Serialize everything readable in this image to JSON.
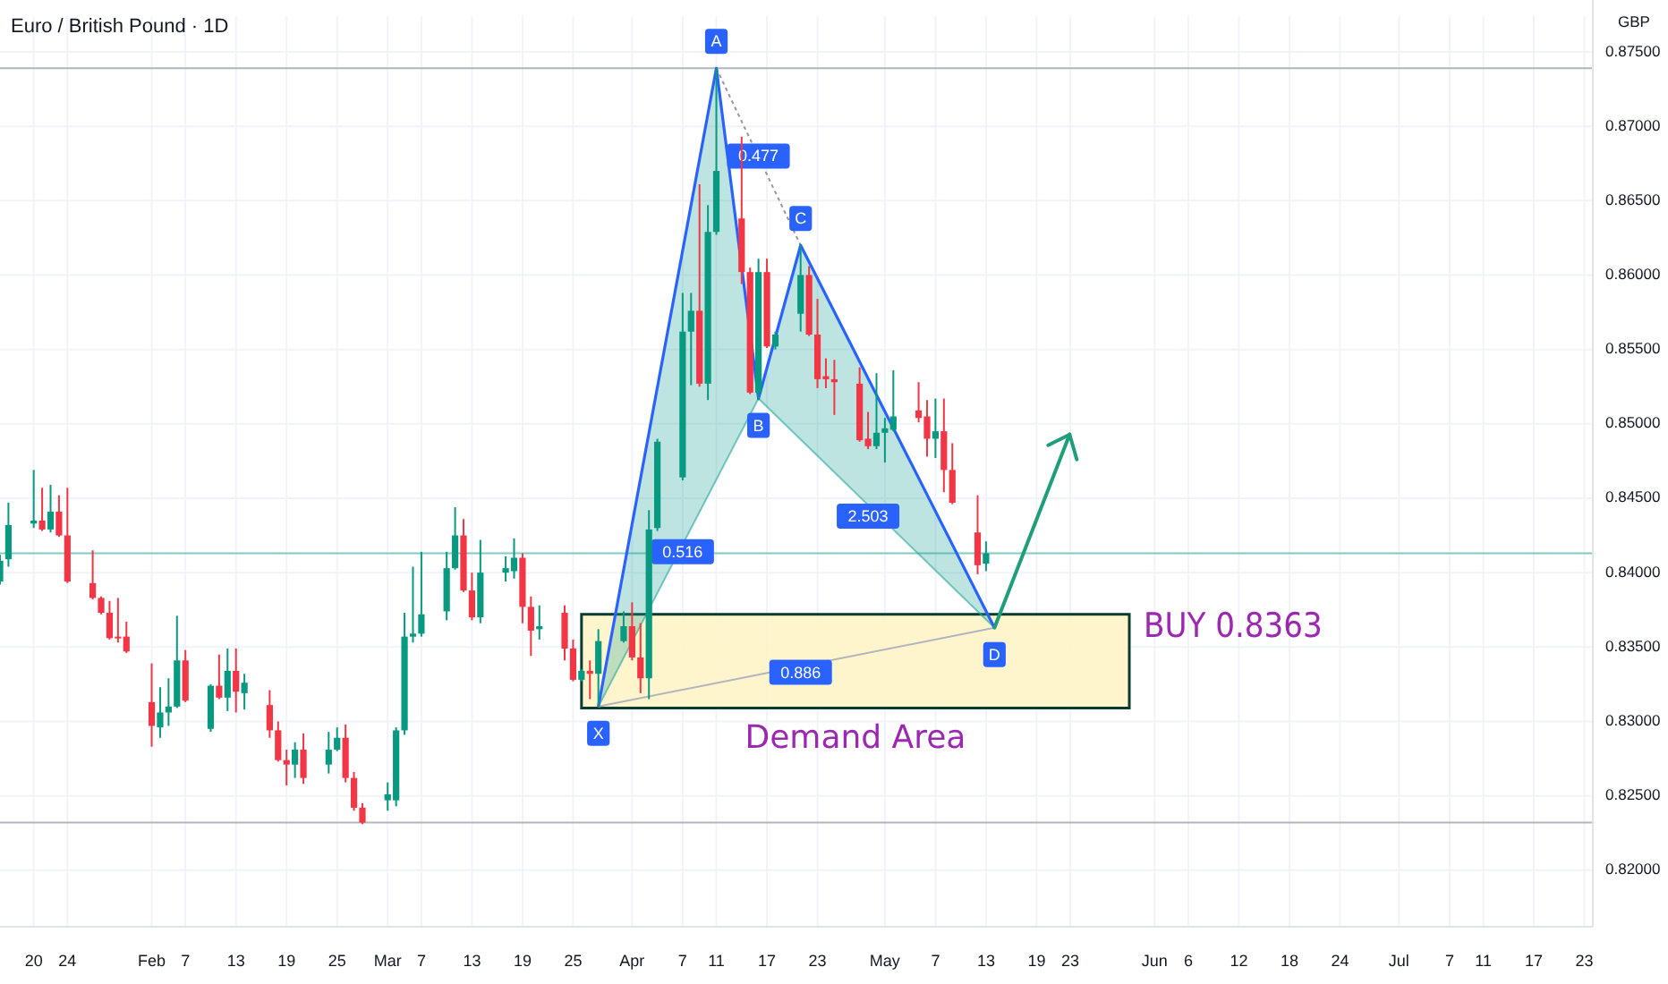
{
  "chart_data": {
    "type": "candlestick",
    "title": "Euro / British Pound · 1D",
    "ylabel": "GBP",
    "x": [
      "--01-16",
      "--01-17",
      "--01-20",
      "--01-21",
      "--01-22",
      "--01-23",
      "--01-24",
      "--01-27",
      "--01-28",
      "--01-29",
      "--01-30",
      "--01-31",
      "--02-03",
      "--02-04",
      "--02-05",
      "--02-06",
      "--02-07",
      "--02-10",
      "--02-11",
      "--02-12",
      "--02-13",
      "--02-14",
      "--02-17",
      "--02-18",
      "--02-19",
      "--02-20",
      "--02-21",
      "--02-24",
      "--02-25",
      "--02-26",
      "--02-27",
      "--02-28",
      "--03-03",
      "--03-04",
      "--03-05",
      "--03-06",
      "--03-07",
      "--03-10",
      "--03-11",
      "--03-12",
      "--03-13",
      "--03-14",
      "--03-17",
      "--03-18",
      "--03-19",
      "--03-20",
      "--03-21",
      "--03-24",
      "--03-25",
      "--03-26",
      "--03-27",
      "--03-28",
      "--03-31",
      "--04-01",
      "--04-02",
      "--04-03",
      "--04-04",
      "--04-07",
      "--04-08",
      "--04-09",
      "--04-10",
      "--04-11",
      "--04-14",
      "--04-15",
      "--04-16",
      "--04-17",
      "--04-18",
      "--04-21",
      "--04-22",
      "--04-23",
      "--04-24",
      "--04-25",
      "--04-28",
      "--04-29",
      "--04-30",
      "--05-01",
      "--05-02",
      "--05-05",
      "--05-06",
      "--05-07",
      "--05-08",
      "--05-09",
      "--05-12",
      "--05-13"
    ],
    "ohlc": [
      [
        0.8394,
        0.8412,
        0.8392,
        0.8408
      ],
      [
        0.8409,
        0.8447,
        0.8404,
        0.8432
      ],
      [
        0.8433,
        0.8469,
        0.843,
        0.8435
      ],
      [
        0.8435,
        0.8457,
        0.8428,
        0.8429
      ],
      [
        0.8429,
        0.8459,
        0.8427,
        0.8441
      ],
      [
        0.8441,
        0.8452,
        0.8424,
        0.8425
      ],
      [
        0.8425,
        0.8457,
        0.8393,
        0.8394
      ],
      [
        0.8393,
        0.8415,
        0.8382,
        0.8383
      ],
      [
        0.8383,
        0.8384,
        0.8372,
        0.8373
      ],
      [
        0.8373,
        0.8381,
        0.8355,
        0.8356
      ],
      [
        0.8357,
        0.8383,
        0.8353,
        0.8356
      ],
      [
        0.8357,
        0.8367,
        0.8346,
        0.8347
      ],
      [
        0.8313,
        0.8339,
        0.8283,
        0.8297
      ],
      [
        0.8296,
        0.8323,
        0.8289,
        0.8306
      ],
      [
        0.8306,
        0.8329,
        0.8297,
        0.831
      ],
      [
        0.831,
        0.8371,
        0.8309,
        0.8341
      ],
      [
        0.8341,
        0.8348,
        0.8313,
        0.8314
      ],
      [
        0.8295,
        0.8325,
        0.8293,
        0.8324
      ],
      [
        0.8324,
        0.8345,
        0.8315,
        0.8316
      ],
      [
        0.8316,
        0.8349,
        0.8307,
        0.8334
      ],
      [
        0.8334,
        0.8349,
        0.8306,
        0.832
      ],
      [
        0.8319,
        0.8332,
        0.8308,
        0.8326
      ],
      [
        0.8311,
        0.8321,
        0.8289,
        0.8294
      ],
      [
        0.8294,
        0.83,
        0.8273,
        0.8274
      ],
      [
        0.8274,
        0.8281,
        0.8257,
        0.8271
      ],
      [
        0.8271,
        0.8286,
        0.8262,
        0.8281
      ],
      [
        0.8281,
        0.8292,
        0.8258,
        0.8262
      ],
      [
        0.8271,
        0.8293,
        0.8265,
        0.8281
      ],
      [
        0.8281,
        0.8296,
        0.828,
        0.8289
      ],
      [
        0.8289,
        0.8298,
        0.8259,
        0.8262
      ],
      [
        0.8262,
        0.8266,
        0.824,
        0.8242
      ],
      [
        0.8242,
        0.8245,
        0.8231,
        0.8232
      ],
      [
        0.8247,
        0.8259,
        0.824,
        0.8251
      ],
      [
        0.8247,
        0.8296,
        0.8243,
        0.8294
      ],
      [
        0.8294,
        0.8373,
        0.8291,
        0.8357
      ],
      [
        0.8357,
        0.8404,
        0.8353,
        0.8359
      ],
      [
        0.8359,
        0.8414,
        0.8357,
        0.8372
      ],
      [
        0.8374,
        0.8414,
        0.8368,
        0.8403
      ],
      [
        0.8403,
        0.8444,
        0.8402,
        0.8425
      ],
      [
        0.8425,
        0.8436,
        0.8387,
        0.8388
      ],
      [
        0.8388,
        0.84,
        0.8368,
        0.837
      ],
      [
        0.837,
        0.8422,
        0.8366,
        0.84
      ],
      [
        0.84,
        0.8411,
        0.8394,
        0.8403
      ],
      [
        0.8401,
        0.8423,
        0.8396,
        0.841
      ],
      [
        0.841,
        0.8413,
        0.8366,
        0.8377
      ],
      [
        0.8377,
        0.8384,
        0.8344,
        0.8361
      ],
      [
        0.8362,
        0.8378,
        0.8355,
        0.8364
      ],
      [
        0.8373,
        0.8378,
        0.8341,
        0.8349
      ],
      [
        0.8349,
        0.8355,
        0.8327,
        0.8328
      ],
      [
        0.8328,
        0.8335,
        0.8327,
        0.8334
      ],
      [
        0.8334,
        0.8341,
        0.8315,
        0.8332
      ],
      [
        0.8332,
        0.8362,
        0.831,
        0.8354
      ],
      [
        0.8354,
        0.8374,
        0.8353,
        0.8364
      ],
      [
        0.8364,
        0.838,
        0.8341,
        0.8343
      ],
      [
        0.8343,
        0.8366,
        0.8319,
        0.8329
      ],
      [
        0.8329,
        0.8442,
        0.8315,
        0.8429
      ],
      [
        0.843,
        0.849,
        0.8428,
        0.8488
      ],
      [
        0.8464,
        0.8588,
        0.8462,
        0.8562
      ],
      [
        0.8562,
        0.8588,
        0.8526,
        0.8576
      ],
      [
        0.8576,
        0.8661,
        0.8525,
        0.8527
      ],
      [
        0.8527,
        0.8647,
        0.8516,
        0.8629
      ],
      [
        0.8629,
        0.8739,
        0.8627,
        0.867
      ],
      [
        0.8638,
        0.8693,
        0.8594,
        0.8602
      ],
      [
        0.8602,
        0.8605,
        0.852,
        0.8521
      ],
      [
        0.8521,
        0.8611,
        0.8516,
        0.8602
      ],
      [
        0.8602,
        0.8611,
        0.8551,
        0.8552
      ],
      [
        0.8552,
        0.8562,
        0.855,
        0.856
      ],
      [
        0.8574,
        0.862,
        0.8562,
        0.86
      ],
      [
        0.86,
        0.8606,
        0.8559,
        0.856
      ],
      [
        0.856,
        0.8584,
        0.8524,
        0.853
      ],
      [
        0.8532,
        0.8544,
        0.8524,
        0.853
      ],
      [
        0.853,
        0.8543,
        0.8506,
        0.8528
      ],
      [
        0.8527,
        0.8538,
        0.8488,
        0.8489
      ],
      [
        0.849,
        0.8508,
        0.8483,
        0.8485
      ],
      [
        0.8485,
        0.8534,
        0.8483,
        0.8494
      ],
      [
        0.8494,
        0.8504,
        0.8474,
        0.8497
      ],
      [
        0.8496,
        0.8536,
        0.8495,
        0.8505
      ],
      [
        0.8509,
        0.8528,
        0.8501,
        0.8504
      ],
      [
        0.8505,
        0.8516,
        0.8478,
        0.849
      ],
      [
        0.849,
        0.8517,
        0.8477,
        0.8495
      ],
      [
        0.8495,
        0.8517,
        0.8454,
        0.8469
      ],
      [
        0.8469,
        0.8487,
        0.8446,
        0.8447
      ],
      [
        0.8427,
        0.8452,
        0.8399,
        0.8405
      ],
      [
        0.8406,
        0.8421,
        0.8401,
        0.8413
      ]
    ],
    "series": [
      {
        "type": "line",
        "x": [
          "--03-28",
          "--04-11",
          "--04-16",
          "--04-21",
          "--05-14"
        ],
        "values": [
          0.831,
          0.8739,
          0.8517,
          0.862,
          0.8363
        ],
        "color": "#2962ff"
      }
    ],
    "annotations": [
      {
        "text": "X",
        "x": "--03-28",
        "y": 0.831
      },
      {
        "text": "A",
        "x": "--04-11",
        "y": 0.8739
      },
      {
        "text": "B",
        "x": "--04-16",
        "y": 0.8517
      },
      {
        "text": "C",
        "x": "--04-21",
        "y": 0.862
      },
      {
        "text": "D",
        "x": "--05-14",
        "y": 0.8363
      },
      {
        "text": "0.516",
        "x": "--04-07",
        "y": 0.8414
      },
      {
        "text": "0.477",
        "x": "--04-16",
        "y": 0.868
      },
      {
        "text": "2.503",
        "x": "--04-29",
        "y": 0.8438
      },
      {
        "text": "0.886",
        "x": "--04-21",
        "y": 0.8333
      },
      "BUY 0.8363"
    ],
    "bands": [
      {
        "axis": "y",
        "from": 0.8309,
        "to": 0.8372,
        "label": "Demand Area",
        "color": "#fff3c4"
      }
    ],
    "ref_lines": [
      {
        "axis": "y",
        "value": 0.8739,
        "color": "#b2b5be"
      },
      {
        "axis": "y",
        "value": 0.8232,
        "color": "#b2b5be"
      },
      {
        "axis": "y",
        "value": 0.8413,
        "color": "#80cbc4"
      }
    ],
    "xlim": [
      "--01-16",
      "--07-24"
    ],
    "xticks": [
      {
        "value": "--01-20",
        "label": "20"
      },
      {
        "value": "--01-24",
        "label": "24"
      },
      {
        "value": "--02-03",
        "label": "Feb"
      },
      {
        "value": "--02-07",
        "label": "7"
      },
      {
        "value": "--02-13",
        "label": "13"
      },
      {
        "value": "--02-19",
        "label": "19"
      },
      {
        "value": "--02-25",
        "label": "25"
      },
      {
        "value": "--03-03",
        "label": "Mar"
      },
      {
        "value": "--03-07",
        "label": "7"
      },
      {
        "value": "--03-13",
        "label": "13"
      },
      {
        "value": "--03-19",
        "label": "19"
      },
      {
        "value": "--03-25",
        "label": "25"
      },
      {
        "value": "--04-01",
        "label": "Apr"
      },
      {
        "value": "--04-07",
        "label": "7"
      },
      {
        "value": "--04-11",
        "label": "11"
      },
      {
        "value": "--04-17",
        "label": "17"
      },
      {
        "value": "--04-23",
        "label": "23"
      },
      {
        "value": "--05-01",
        "label": "May"
      },
      {
        "value": "--05-07",
        "label": "7"
      },
      {
        "value": "--05-13",
        "label": "13"
      },
      {
        "value": "--05-19",
        "label": "19"
      },
      {
        "value": "--05-23",
        "label": "23"
      },
      {
        "value": "--06-02",
        "label": "Jun"
      },
      {
        "value": "--06-06",
        "label": "6"
      },
      {
        "value": "--06-12",
        "label": "12"
      },
      {
        "value": "--06-18",
        "label": "18"
      },
      {
        "value": "--06-24",
        "label": "24"
      },
      {
        "value": "--07-01",
        "label": "Jul"
      },
      {
        "value": "--07-07",
        "label": "7"
      },
      {
        "value": "--07-11",
        "label": "11"
      },
      {
        "value": "--07-17",
        "label": "17"
      },
      {
        "value": "--07-23",
        "label": "23"
      }
    ],
    "ylim": [
      0.8162,
      0.875
    ],
    "yticks": [
      {
        "value": 0.82,
        "label": "0.82000"
      },
      {
        "value": 0.825,
        "label": "0.82500"
      },
      {
        "value": 0.83,
        "label": "0.83000"
      },
      {
        "value": 0.835,
        "label": "0.83500"
      },
      {
        "value": 0.84,
        "label": "0.84000"
      },
      {
        "value": 0.845,
        "label": "0.84500"
      },
      {
        "value": 0.85,
        "label": "0.85000"
      },
      {
        "value": 0.855,
        "label": "0.85500"
      },
      {
        "value": 0.86,
        "label": "0.86000"
      },
      {
        "value": 0.865,
        "label": "0.86500"
      },
      {
        "value": 0.87,
        "label": "0.87000"
      },
      {
        "value": 0.875,
        "label": "0.87500"
      }
    ],
    "grid": true
  }
}
